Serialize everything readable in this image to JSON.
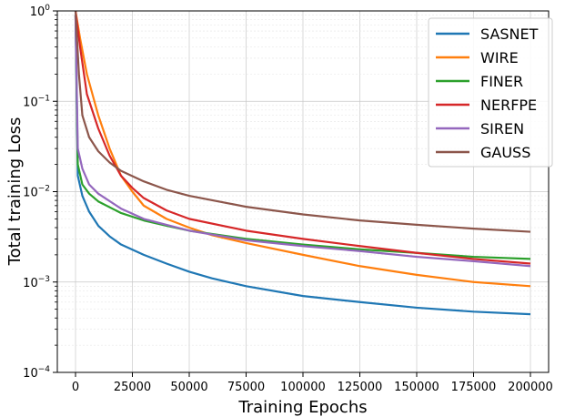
{
  "chart_data": {
    "type": "line",
    "xlabel": "Training Epochs",
    "ylabel": "Total training Loss",
    "yscale": "log",
    "xlim": [
      -8000,
      208000
    ],
    "ylim": [
      0.0001,
      1
    ],
    "xticks": [
      0,
      25000,
      50000,
      75000,
      100000,
      125000,
      150000,
      175000,
      200000
    ],
    "xtick_labels": [
      "0",
      "25000",
      "50000",
      "75000",
      "100000",
      "125000",
      "150000",
      "175000",
      "200000"
    ],
    "yticks": [
      0.0001,
      0.001,
      0.01,
      0.1,
      1
    ],
    "ytick_labels": [
      {
        "base": "10",
        "exp": "−4"
      },
      {
        "base": "10",
        "exp": "−3"
      },
      {
        "base": "10",
        "exp": "−2"
      },
      {
        "base": "10",
        "exp": "−1"
      },
      {
        "base": "10",
        "exp": "0"
      }
    ],
    "grid": true,
    "legend_position": "top-right",
    "series": [
      {
        "name": "SASNET",
        "color": "#1f77b4",
        "x": [
          0,
          1000,
          3000,
          6000,
          10000,
          15000,
          20000,
          30000,
          40000,
          50000,
          60000,
          75000,
          100000,
          125000,
          150000,
          175000,
          200000
        ],
        "y": [
          0.9,
          0.015,
          0.009,
          0.006,
          0.0042,
          0.0032,
          0.0026,
          0.002,
          0.0016,
          0.0013,
          0.0011,
          0.0009,
          0.0007,
          0.0006,
          0.00052,
          0.00047,
          0.00044
        ]
      },
      {
        "name": "WIRE",
        "color": "#ff7f0e",
        "x": [
          0,
          2000,
          5000,
          10000,
          15000,
          20000,
          25000,
          30000,
          40000,
          50000,
          60000,
          75000,
          100000,
          125000,
          150000,
          175000,
          200000
        ],
        "y": [
          1,
          0.5,
          0.2,
          0.07,
          0.03,
          0.015,
          0.01,
          0.007,
          0.005,
          0.004,
          0.0033,
          0.0027,
          0.002,
          0.0015,
          0.0012,
          0.001,
          0.0009
        ]
      },
      {
        "name": "FINER",
        "color": "#2ca02c",
        "x": [
          0,
          1000,
          3000,
          6000,
          10000,
          20000,
          30000,
          40000,
          50000,
          75000,
          100000,
          125000,
          150000,
          175000,
          200000
        ],
        "y": [
          0.9,
          0.02,
          0.012,
          0.0095,
          0.0078,
          0.0058,
          0.0048,
          0.0042,
          0.0037,
          0.003,
          0.0026,
          0.0023,
          0.0021,
          0.0019,
          0.0018
        ]
      },
      {
        "name": "NERFPE",
        "color": "#d62728",
        "x": [
          0,
          2000,
          5000,
          10000,
          15000,
          20000,
          25000,
          30000,
          40000,
          50000,
          75000,
          100000,
          125000,
          150000,
          175000,
          200000
        ],
        "y": [
          1,
          0.4,
          0.12,
          0.05,
          0.025,
          0.015,
          0.011,
          0.0085,
          0.0062,
          0.005,
          0.0037,
          0.003,
          0.0025,
          0.0021,
          0.0018,
          0.0016
        ]
      },
      {
        "name": "SIREN",
        "color": "#9467bd",
        "x": [
          0,
          1000,
          3000,
          6000,
          10000,
          20000,
          30000,
          40000,
          50000,
          75000,
          100000,
          125000,
          150000,
          175000,
          200000
        ],
        "y": [
          0.9,
          0.03,
          0.018,
          0.012,
          0.0095,
          0.0065,
          0.005,
          0.0043,
          0.0037,
          0.0029,
          0.0025,
          0.0022,
          0.0019,
          0.0017,
          0.0015
        ]
      },
      {
        "name": "GAUSS",
        "color": "#8c564b",
        "x": [
          0,
          1500,
          3000,
          6000,
          10000,
          15000,
          20000,
          30000,
          40000,
          50000,
          75000,
          100000,
          125000,
          150000,
          175000,
          200000
        ],
        "y": [
          1,
          0.2,
          0.07,
          0.04,
          0.028,
          0.021,
          0.017,
          0.013,
          0.0105,
          0.009,
          0.0068,
          0.0056,
          0.0048,
          0.0043,
          0.0039,
          0.0036
        ]
      }
    ]
  }
}
